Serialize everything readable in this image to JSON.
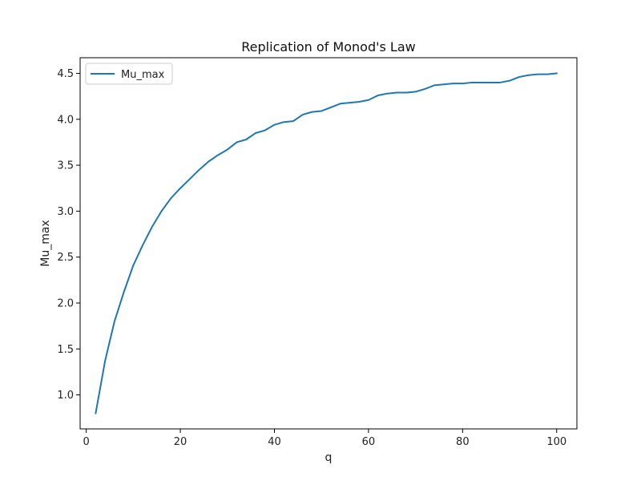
{
  "chart_data": {
    "type": "line",
    "title": "Replication of Monod's Law",
    "xlabel": "q",
    "ylabel": "Mu_max",
    "xlim": [
      -1.3,
      104.3
    ],
    "ylim": [
      0.63,
      4.67
    ],
    "xticks": [
      0,
      20,
      40,
      60,
      80,
      100
    ],
    "yticks": [
      1.0,
      1.5,
      2.0,
      2.5,
      3.0,
      3.5,
      4.0,
      4.5
    ],
    "ytick_labels": [
      "1.0",
      "1.5",
      "2.0",
      "2.5",
      "3.0",
      "3.5",
      "4.0",
      "4.5"
    ],
    "grid": false,
    "legend_position": "upper-left",
    "series": [
      {
        "name": "Mu_max",
        "color": "#1f77b4",
        "x": [
          2,
          4,
          6,
          8,
          10,
          12,
          14,
          16,
          18,
          20,
          22,
          24,
          26,
          28,
          30,
          32,
          34,
          36,
          38,
          40,
          42,
          44,
          46,
          48,
          50,
          52,
          54,
          56,
          58,
          60,
          62,
          64,
          66,
          68,
          70,
          72,
          74,
          76,
          78,
          80,
          82,
          84,
          86,
          88,
          90,
          92,
          94,
          96,
          98,
          100
        ],
        "y": [
          0.8,
          1.37,
          1.8,
          2.12,
          2.41,
          2.63,
          2.83,
          3.0,
          3.14,
          3.25,
          3.35,
          3.45,
          3.54,
          3.61,
          3.67,
          3.75,
          3.78,
          3.85,
          3.88,
          3.94,
          3.97,
          3.98,
          4.05,
          4.08,
          4.09,
          4.13,
          4.17,
          4.18,
          4.19,
          4.21,
          4.26,
          4.28,
          4.29,
          4.29,
          4.3,
          4.33,
          4.37,
          4.38,
          4.39,
          4.39,
          4.4,
          4.4,
          4.4,
          4.4,
          4.42,
          4.46,
          4.48,
          4.49,
          4.49,
          4.5
        ]
      }
    ]
  }
}
